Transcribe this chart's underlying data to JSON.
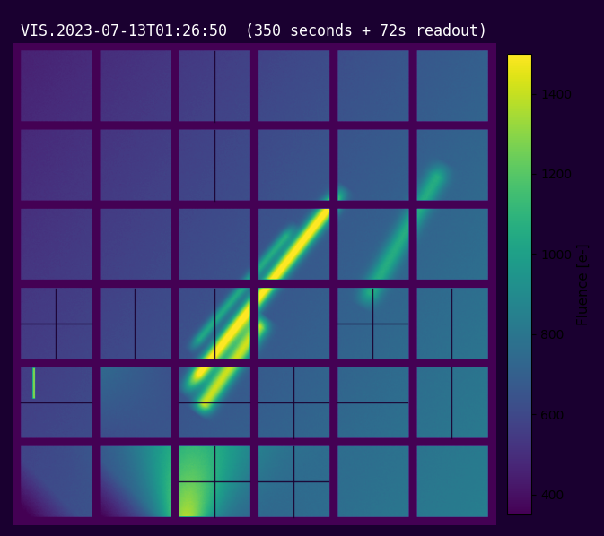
{
  "title": "VIS.2023-07-13T01:26:50  (350 seconds + 72s readout)",
  "colorbar_label": "Fluence [e-]",
  "vmin": 350,
  "vmax": 1500,
  "cmap": "viridis",
  "nrows": 6,
  "ncols": 6,
  "title_fontsize": 12,
  "colorbar_ticks": [
    400,
    600,
    800,
    1000,
    1200,
    1400
  ],
  "sub_dividers": [
    [
      0,
      2,
      "v",
      0.5
    ],
    [
      1,
      2,
      "v",
      0.5
    ],
    [
      3,
      0,
      "h",
      0.5
    ],
    [
      3,
      0,
      "v",
      0.5
    ],
    [
      3,
      1,
      "v",
      0.5
    ],
    [
      3,
      2,
      "v",
      0.5
    ],
    [
      3,
      4,
      "v",
      0.5
    ],
    [
      3,
      4,
      "h",
      0.5
    ],
    [
      3,
      5,
      "v",
      0.5
    ],
    [
      4,
      0,
      "h",
      0.5
    ],
    [
      4,
      2,
      "h",
      0.5
    ],
    [
      4,
      3,
      "h",
      0.5
    ],
    [
      4,
      3,
      "v",
      0.5
    ],
    [
      4,
      4,
      "h",
      0.5
    ],
    [
      4,
      5,
      "v",
      0.5
    ],
    [
      5,
      2,
      "v",
      0.5
    ],
    [
      5,
      2,
      "h",
      0.5
    ],
    [
      5,
      3,
      "h",
      0.5
    ],
    [
      5,
      3,
      "v",
      0.5
    ]
  ]
}
